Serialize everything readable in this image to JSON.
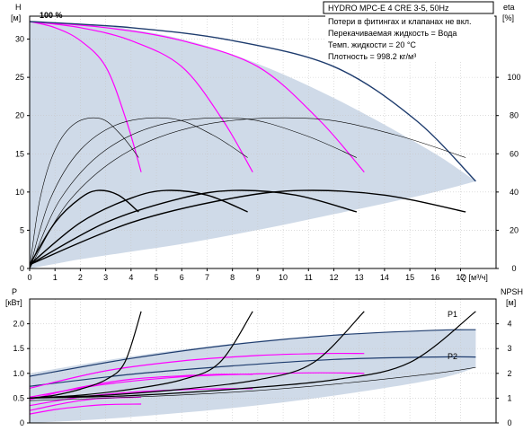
{
  "chart_data": [
    {
      "type": "line",
      "name_hint": "head-chart",
      "xlabel": "Q [м³/ч]",
      "ylabel_left": "H",
      "ylabel_left_unit": "[м]",
      "ylabel_right": "eta",
      "ylabel_right_unit": "[%]",
      "speed_label": "100 %",
      "xlim": [
        0,
        18.4
      ],
      "ylim_left": [
        0,
        33
      ],
      "ylim_right": [
        0,
        132
      ],
      "x_ticks": [
        0,
        1,
        2,
        3,
        4,
        5,
        6,
        7,
        8,
        9,
        10,
        11,
        12,
        13,
        14,
        15,
        16,
        17
      ],
      "y_left_ticks": [
        0,
        5,
        10,
        15,
        20,
        25,
        30
      ],
      "y_right_ticks": [
        0,
        20,
        40,
        60,
        80,
        100
      ],
      "grid": true,
      "envelope": {
        "upper": [
          [
            0,
            32.3
          ],
          [
            2,
            32
          ],
          [
            4,
            31.3
          ],
          [
            6,
            30
          ],
          [
            8,
            28
          ],
          [
            10,
            25.4
          ],
          [
            12,
            22.3
          ],
          [
            14,
            18.8
          ],
          [
            16,
            15
          ],
          [
            17,
            12.8
          ],
          [
            17.6,
            11.4
          ]
        ],
        "lower": [
          [
            0,
            0
          ],
          [
            1,
            0.6
          ],
          [
            2,
            1.2
          ],
          [
            4,
            2.2
          ],
          [
            6,
            3.2
          ],
          [
            8,
            4.4
          ],
          [
            10,
            5.7
          ],
          [
            12,
            7.1
          ],
          [
            14,
            8.5
          ],
          [
            16,
            10
          ],
          [
            17.6,
            11.4
          ]
        ]
      },
      "series": [
        {
          "curve": "qh-1-pump",
          "color": "#ff00ff",
          "points": [
            [
              0,
              32.3
            ],
            [
              1,
              31.5
            ],
            [
              2,
              29.8
            ],
            [
              3,
              26.4
            ],
            [
              3.8,
              19.5
            ],
            [
              4.4,
              12.6
            ]
          ]
        },
        {
          "curve": "qh-2-pumps",
          "color": "#ff00ff",
          "points": [
            [
              0,
              32.3
            ],
            [
              2,
              31.5
            ],
            [
              4,
              29.8
            ],
            [
              6,
              26.4
            ],
            [
              7.6,
              19.5
            ],
            [
              8.8,
              12.6
            ]
          ]
        },
        {
          "curve": "qh-3-pumps",
          "color": "#ff00ff",
          "points": [
            [
              0,
              32.3
            ],
            [
              3,
              31.5
            ],
            [
              6,
              29.8
            ],
            [
              9,
              26.4
            ],
            [
              11.4,
              19.5
            ],
            [
              13.2,
              12.6
            ]
          ]
        },
        {
          "curve": "qh-4-pumps",
          "color": "#1e3c6e",
          "points": [
            [
              0,
              32.3
            ],
            [
              4,
              31.5
            ],
            [
              8,
              29.8
            ],
            [
              12,
              26.4
            ],
            [
              15.2,
              19.5
            ],
            [
              17.6,
              11.4
            ]
          ]
        },
        {
          "curve": "eff-1-pump",
          "color": "#000000",
          "points": [
            [
              0,
              0
            ],
            [
              0.4,
              9
            ],
            [
              1,
              15.5
            ],
            [
              1.8,
              19
            ],
            [
              2.8,
              19.6
            ],
            [
              3.6,
              17.5
            ],
            [
              4.3,
              14.5
            ]
          ]
        },
        {
          "curve": "eff-2-pumps",
          "color": "#000000",
          "points": [
            [
              0,
              0
            ],
            [
              0.8,
              9
            ],
            [
              2,
              15.5
            ],
            [
              3.6,
              19
            ],
            [
              5.6,
              19.6
            ],
            [
              7.2,
              17.5
            ],
            [
              8.6,
              14.5
            ]
          ]
        },
        {
          "curve": "eff-3-pumps",
          "color": "#000000",
          "points": [
            [
              0,
              0
            ],
            [
              1.2,
              9
            ],
            [
              3,
              15.5
            ],
            [
              5.4,
              19
            ],
            [
              8.4,
              19.6
            ],
            [
              10.8,
              17.5
            ],
            [
              12.9,
              14.5
            ]
          ]
        },
        {
          "curve": "eff-4-pumps",
          "color": "#000000",
          "points": [
            [
              0,
              0
            ],
            [
              1.6,
              9
            ],
            [
              4,
              15.5
            ],
            [
              7.2,
              19
            ],
            [
              11.2,
              19.6
            ],
            [
              14.4,
              17.5
            ],
            [
              17.2,
              14.5
            ]
          ]
        },
        {
          "curve": "qh-dark-1",
          "color": "#000000",
          "points": [
            [
              0,
              0.5
            ],
            [
              1,
              6
            ],
            [
              2,
              9.2
            ],
            [
              2.7,
              10.2
            ],
            [
              3.5,
              9.6
            ],
            [
              4.3,
              7.4
            ]
          ]
        },
        {
          "curve": "qh-dark-2",
          "color": "#000000",
          "points": [
            [
              0,
              0.5
            ],
            [
              2,
              6
            ],
            [
              4,
              9.2
            ],
            [
              5.4,
              10.2
            ],
            [
              7,
              9.6
            ],
            [
              8.6,
              7.4
            ]
          ]
        },
        {
          "curve": "qh-dark-3",
          "color": "#000000",
          "points": [
            [
              0,
              0.5
            ],
            [
              3,
              6
            ],
            [
              6,
              9.2
            ],
            [
              8.1,
              10.2
            ],
            [
              10.5,
              9.6
            ],
            [
              12.9,
              7.4
            ]
          ]
        },
        {
          "curve": "qh-dark-4",
          "color": "#000000",
          "points": [
            [
              0,
              0.5
            ],
            [
              4,
              6
            ],
            [
              8,
              9.2
            ],
            [
              10.8,
              10.2
            ],
            [
              14,
              9.6
            ],
            [
              17.2,
              7.4
            ]
          ]
        }
      ],
      "info": {
        "header": "HYDRO MPC-E 4 CRE 3-5, 50Hz",
        "line1": "Потери в фитингах и клапанах не вкл.",
        "line2": "Перекачиваемая жидкость = Вода",
        "line3": "Темп. жидкости = 20 °C",
        "line4": "Плотность = 998.2 кг/м³"
      }
    },
    {
      "type": "line",
      "name_hint": "power-npsh-chart",
      "ylabel_left": "P",
      "ylabel_left_unit": "[кВт]",
      "ylabel_right": "NPSH",
      "ylabel_right_unit": "[м]",
      "xlim": [
        0,
        18.4
      ],
      "ylim_left": [
        0,
        2.5
      ],
      "ylim_right": [
        0,
        5
      ],
      "y_left_ticks": [
        0,
        0.5,
        1.0,
        1.5,
        2.0
      ],
      "y_left_tick_labels": [
        "0",
        "0.5",
        "1.0",
        "1.5",
        "2.0"
      ],
      "y_right_ticks": [
        0,
        1,
        2,
        3,
        4
      ],
      "grid": true,
      "labels": {
        "p1": "P1",
        "p2": "P2"
      },
      "envelope": {
        "upper": [
          [
            0,
            1.0
          ],
          [
            4,
            1.34
          ],
          [
            8,
            1.6
          ],
          [
            12,
            1.78
          ],
          [
            16,
            1.87
          ],
          [
            17.6,
            1.88
          ]
        ],
        "lower": [
          [
            0,
            0
          ],
          [
            2,
            0.05
          ],
          [
            4,
            0.12
          ],
          [
            8,
            0.3
          ],
          [
            12,
            0.55
          ],
          [
            16,
            0.88
          ],
          [
            17.6,
            1.12
          ]
        ]
      },
      "series": [
        {
          "curve": "p1-envelope",
          "color": "#1e3c6e",
          "points": [
            [
              0,
              0.94
            ],
            [
              4,
              1.3
            ],
            [
              8,
              1.58
            ],
            [
              12,
              1.77
            ],
            [
              16,
              1.87
            ],
            [
              17.6,
              1.88
            ]
          ]
        },
        {
          "curve": "p2-envelope",
          "color": "#1e3c6e",
          "points": [
            [
              0,
              0.74
            ],
            [
              4,
              0.98
            ],
            [
              8,
              1.15
            ],
            [
              12,
              1.28
            ],
            [
              16,
              1.33
            ],
            [
              17.6,
              1.33
            ]
          ]
        },
        {
          "curve": "p1-3-pumps",
          "color": "#ff00ff",
          "points": [
            [
              0,
              0.7
            ],
            [
              3,
              1.05
            ],
            [
              6,
              1.25
            ],
            [
              9,
              1.36
            ],
            [
              11.5,
              1.4
            ],
            [
              13.2,
              1.4
            ]
          ]
        },
        {
          "curve": "p2-3-pumps",
          "color": "#ff00ff",
          "points": [
            [
              0,
              0.52
            ],
            [
              3,
              0.78
            ],
            [
              6,
              0.93
            ],
            [
              9,
              0.99
            ],
            [
              11.5,
              1.01
            ],
            [
              13.2,
              1.0
            ]
          ]
        },
        {
          "curve": "p1-2-pumps",
          "color": "#ff00ff",
          "points": [
            [
              0,
              0.47
            ],
            [
              2,
              0.72
            ],
            [
              4,
              0.88
            ],
            [
              6,
              0.95
            ],
            [
              7.6,
              0.98
            ],
            [
              8.8,
              0.98
            ]
          ]
        },
        {
          "curve": "p2-2-pumps",
          "color": "#ff00ff",
          "points": [
            [
              0,
              0.35
            ],
            [
              2,
              0.52
            ],
            [
              4,
              0.62
            ],
            [
              6,
              0.67
            ],
            [
              7.6,
              0.69
            ],
            [
              8.8,
              0.69
            ]
          ]
        },
        {
          "curve": "p1-1-pump",
          "color": "#ff00ff",
          "points": [
            [
              0,
              0.25
            ],
            [
              1,
              0.36
            ],
            [
              2,
              0.45
            ],
            [
              3,
              0.5
            ],
            [
              4.4,
              0.52
            ]
          ]
        },
        {
          "curve": "p2-1-pump",
          "color": "#ff00ff",
          "points": [
            [
              0,
              0.18
            ],
            [
              1,
              0.27
            ],
            [
              2,
              0.33
            ],
            [
              3,
              0.37
            ],
            [
              4.4,
              0.38
            ]
          ]
        },
        {
          "curve": "npsh-4",
          "color": "#000000",
          "points": [
            [
              0,
              0.5
            ],
            [
              4,
              0.55
            ],
            [
              8,
              0.68
            ],
            [
              12,
              0.87
            ],
            [
              15,
              1.22
            ],
            [
              17.6,
              2.25
            ]
          ]
        },
        {
          "curve": "npsh-3",
          "color": "#000000",
          "points": [
            [
              0,
              0.5
            ],
            [
              3,
              0.56
            ],
            [
              6,
              0.68
            ],
            [
              9,
              0.87
            ],
            [
              11.2,
              1.22
            ],
            [
              13.2,
              2.25
            ]
          ]
        },
        {
          "curve": "npsh-2",
          "color": "#000000",
          "points": [
            [
              0,
              0.5
            ],
            [
              2,
              0.56
            ],
            [
              4,
              0.68
            ],
            [
              6,
              0.87
            ],
            [
              7.5,
              1.22
            ],
            [
              8.8,
              2.25
            ]
          ]
        },
        {
          "curve": "npsh-1",
          "color": "#000000",
          "points": [
            [
              0,
              0.5
            ],
            [
              1,
              0.56
            ],
            [
              2,
              0.68
            ],
            [
              3,
              0.87
            ],
            [
              3.75,
              1.22
            ],
            [
              4.4,
              2.25
            ]
          ]
        },
        {
          "curve": "npsh-thin",
          "color": "#000000",
          "points": [
            [
              0,
              0.45
            ],
            [
              4,
              0.52
            ],
            [
              8,
              0.62
            ],
            [
              12,
              0.78
            ],
            [
              16,
              1.0
            ],
            [
              17.6,
              1.12
            ]
          ]
        }
      ]
    }
  ],
  "colors": {
    "envelope_fill": "#cfdae8",
    "grid": "#c8c8c8",
    "axis": "#000000",
    "magenta": "#ff00ff",
    "navy": "#1e3c6e"
  }
}
